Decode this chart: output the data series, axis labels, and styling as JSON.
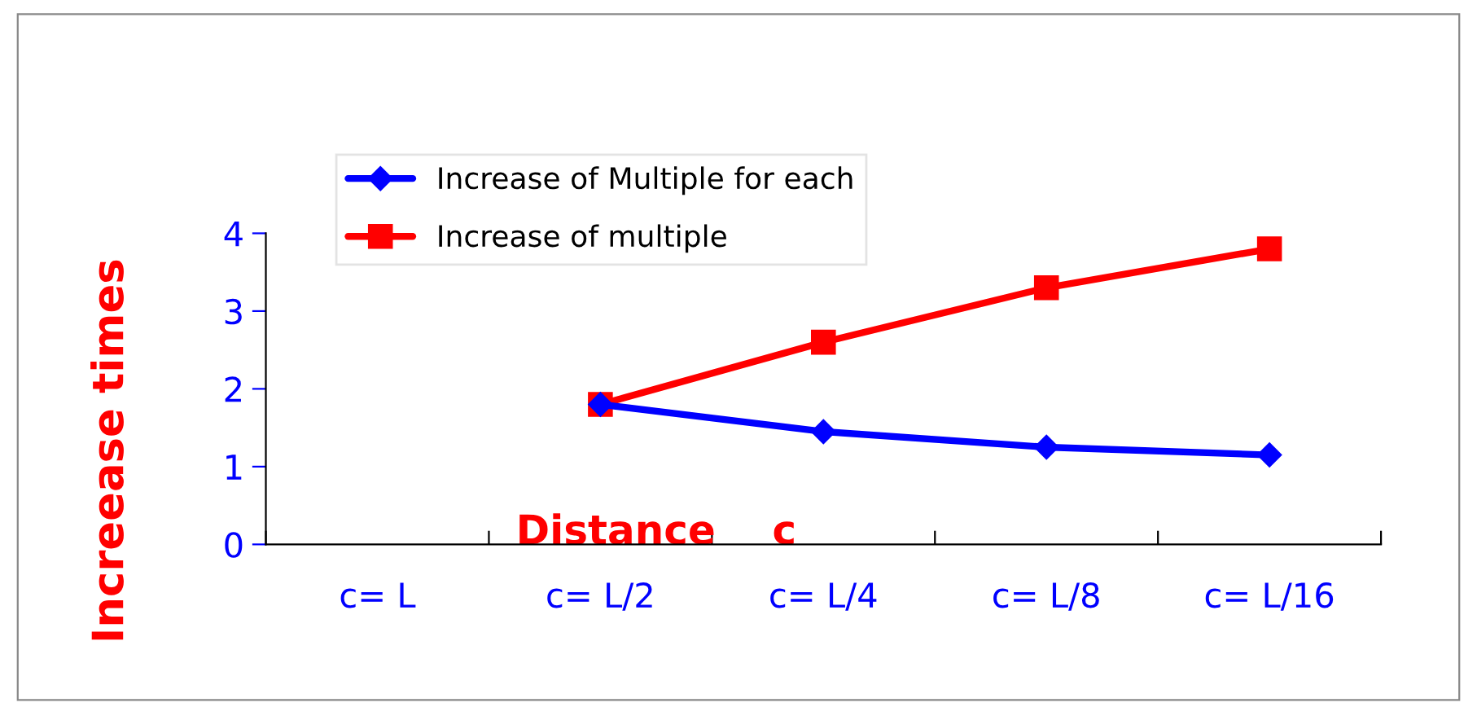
{
  "chart_data": {
    "type": "line",
    "xlabel": "Distance    c",
    "ylabel": "Increease times",
    "categories": [
      "c= L",
      "c= L/2",
      "c= L/4",
      "c= L/8",
      "c= L/16"
    ],
    "series": [
      {
        "name": "Increase of Multiple for each",
        "color": "#0000ff",
        "marker": "diamond",
        "values": [
          null,
          1.8,
          1.45,
          1.25,
          1.15
        ]
      },
      {
        "name": "Increase of multiple",
        "color": "#ff0000",
        "marker": "square",
        "values": [
          null,
          1.8,
          2.6,
          3.3,
          3.8
        ]
      }
    ],
    "ylim": [
      0,
      4
    ],
    "yticks": [
      0,
      1,
      2,
      3,
      4
    ],
    "grid": false,
    "legend": "top left",
    "line_style": "solid"
  }
}
